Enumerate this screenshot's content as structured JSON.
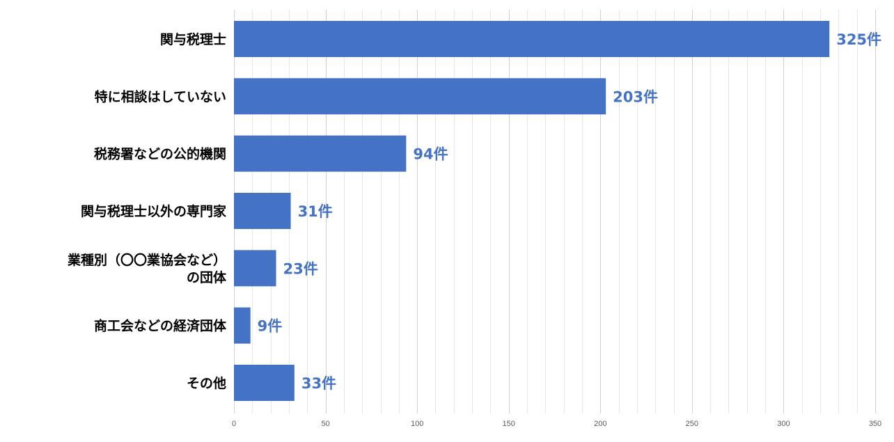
{
  "chart_data": {
    "type": "bar",
    "orientation": "horizontal",
    "categories": [
      "関与税理士",
      "特に相談はしていない",
      "税務署などの公的機関",
      "関与税理士以外の専門家",
      "業種別（〇〇業協会など）の団体",
      "商工会などの経済団体",
      "その他"
    ],
    "category_lines": [
      [
        "関与税理士"
      ],
      [
        "特に相談はしていない"
      ],
      [
        "税務署などの公的機関"
      ],
      [
        "関与税理士以外の専門家"
      ],
      [
        "業種別（〇〇業協会など）",
        "の団体"
      ],
      [
        "商工会などの経済団体"
      ],
      [
        "その他"
      ]
    ],
    "values": [
      325,
      203,
      94,
      31,
      23,
      9,
      33
    ],
    "data_labels": [
      "325件",
      "203件",
      "94件",
      "31件",
      "23件",
      "9件",
      "33件"
    ],
    "xlim": [
      0,
      350
    ],
    "x_ticks": [
      0,
      50,
      100,
      150,
      200,
      250,
      300,
      350
    ],
    "x_tick_labels": [
      "0",
      "50",
      "100",
      "150",
      "200",
      "250",
      "300",
      "350"
    ],
    "grid": true,
    "legend": "none",
    "bar_color": "#4472C4",
    "label_color": "#4472C4",
    "title": "",
    "xlabel": "",
    "ylabel": ""
  }
}
